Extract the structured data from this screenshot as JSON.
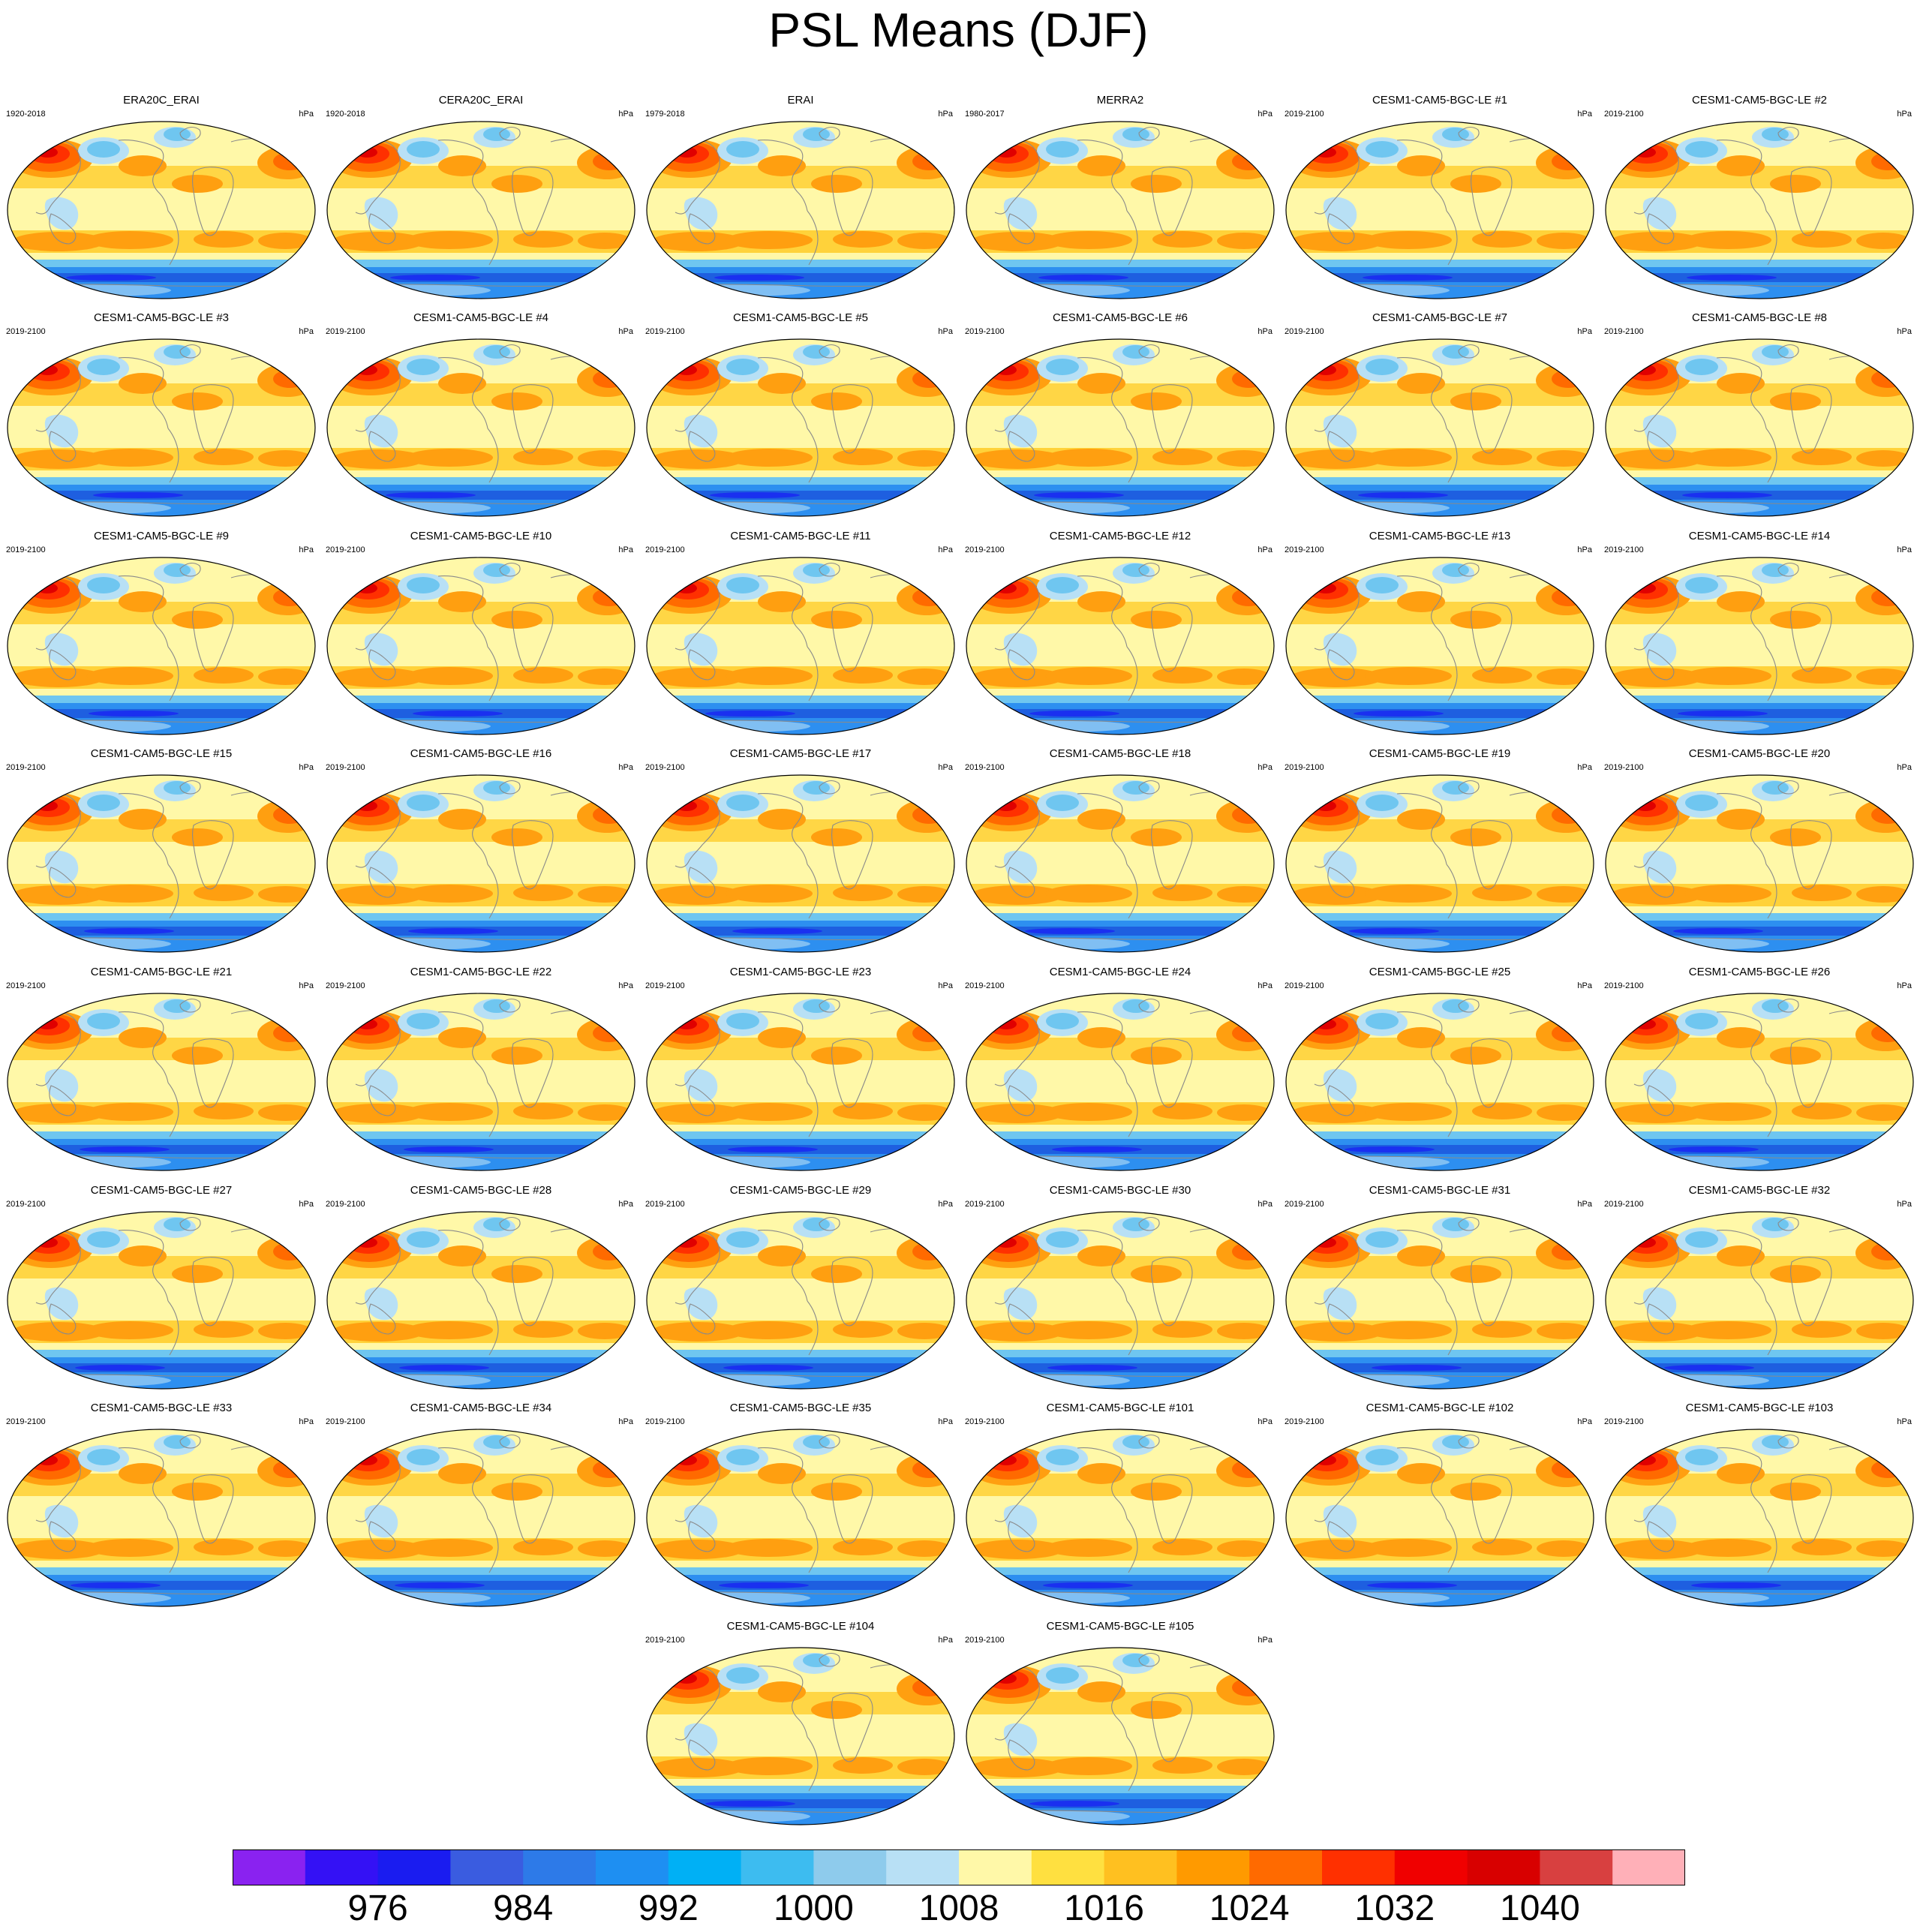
{
  "figure": {
    "title": "PSL Means (DJF)",
    "units": "hPa"
  },
  "panels": [
    {
      "title": "ERA20C_ERAI",
      "years": "1920-2018"
    },
    {
      "title": "CERA20C_ERAI",
      "years": "1920-2018"
    },
    {
      "title": "ERAI",
      "years": "1979-2018"
    },
    {
      "title": "MERRA2",
      "years": "1980-2017"
    },
    {
      "title": "CESM1-CAM5-BGC-LE #1",
      "years": "2019-2100"
    },
    {
      "title": "CESM1-CAM5-BGC-LE #2",
      "years": "2019-2100"
    },
    {
      "title": "CESM1-CAM5-BGC-LE #3",
      "years": "2019-2100"
    },
    {
      "title": "CESM1-CAM5-BGC-LE #4",
      "years": "2019-2100"
    },
    {
      "title": "CESM1-CAM5-BGC-LE #5",
      "years": "2019-2100"
    },
    {
      "title": "CESM1-CAM5-BGC-LE #6",
      "years": "2019-2100"
    },
    {
      "title": "CESM1-CAM5-BGC-LE #7",
      "years": "2019-2100"
    },
    {
      "title": "CESM1-CAM5-BGC-LE #8",
      "years": "2019-2100"
    },
    {
      "title": "CESM1-CAM5-BGC-LE #9",
      "years": "2019-2100"
    },
    {
      "title": "CESM1-CAM5-BGC-LE #10",
      "years": "2019-2100"
    },
    {
      "title": "CESM1-CAM5-BGC-LE #11",
      "years": "2019-2100"
    },
    {
      "title": "CESM1-CAM5-BGC-LE #12",
      "years": "2019-2100"
    },
    {
      "title": "CESM1-CAM5-BGC-LE #13",
      "years": "2019-2100"
    },
    {
      "title": "CESM1-CAM5-BGC-LE #14",
      "years": "2019-2100"
    },
    {
      "title": "CESM1-CAM5-BGC-LE #15",
      "years": "2019-2100"
    },
    {
      "title": "CESM1-CAM5-BGC-LE #16",
      "years": "2019-2100"
    },
    {
      "title": "CESM1-CAM5-BGC-LE #17",
      "years": "2019-2100"
    },
    {
      "title": "CESM1-CAM5-BGC-LE #18",
      "years": "2019-2100"
    },
    {
      "title": "CESM1-CAM5-BGC-LE #19",
      "years": "2019-2100"
    },
    {
      "title": "CESM1-CAM5-BGC-LE #20",
      "years": "2019-2100"
    },
    {
      "title": "CESM1-CAM5-BGC-LE #21",
      "years": "2019-2100"
    },
    {
      "title": "CESM1-CAM5-BGC-LE #22",
      "years": "2019-2100"
    },
    {
      "title": "CESM1-CAM5-BGC-LE #23",
      "years": "2019-2100"
    },
    {
      "title": "CESM1-CAM5-BGC-LE #24",
      "years": "2019-2100"
    },
    {
      "title": "CESM1-CAM5-BGC-LE #25",
      "years": "2019-2100"
    },
    {
      "title": "CESM1-CAM5-BGC-LE #26",
      "years": "2019-2100"
    },
    {
      "title": "CESM1-CAM5-BGC-LE #27",
      "years": "2019-2100"
    },
    {
      "title": "CESM1-CAM5-BGC-LE #28",
      "years": "2019-2100"
    },
    {
      "title": "CESM1-CAM5-BGC-LE #29",
      "years": "2019-2100"
    },
    {
      "title": "CESM1-CAM5-BGC-LE #30",
      "years": "2019-2100"
    },
    {
      "title": "CESM1-CAM5-BGC-LE #31",
      "years": "2019-2100"
    },
    {
      "title": "CESM1-CAM5-BGC-LE #32",
      "years": "2019-2100"
    },
    {
      "title": "CESM1-CAM5-BGC-LE #33",
      "years": "2019-2100"
    },
    {
      "title": "CESM1-CAM5-BGC-LE #34",
      "years": "2019-2100"
    },
    {
      "title": "CESM1-CAM5-BGC-LE #35",
      "years": "2019-2100"
    },
    {
      "title": "CESM1-CAM5-BGC-LE #101",
      "years": "2019-2100"
    },
    {
      "title": "CESM1-CAM5-BGC-LE #102",
      "years": "2019-2100"
    },
    {
      "title": "CESM1-CAM5-BGC-LE #103",
      "years": "2019-2100"
    },
    {
      "title": "CESM1-CAM5-BGC-LE #104",
      "years": "2019-2100"
    },
    {
      "title": "CESM1-CAM5-BGC-LE #105",
      "years": "2019-2100"
    }
  ],
  "colorbar": {
    "labels": [
      "976",
      "984",
      "992",
      "1000",
      "1008",
      "1016",
      "1024",
      "1032",
      "1040"
    ],
    "colors": [
      "#8a22f0",
      "#3411f5",
      "#1a1cf0",
      "#3a5ce0",
      "#2d7ae8",
      "#1e8ff2",
      "#00b0f5",
      "#3dbcf0",
      "#8ecbec",
      "#b8e0f5",
      "#fff8a8",
      "#ffe040",
      "#ffc020",
      "#ff9a00",
      "#ff6a00",
      "#ff3000",
      "#f00000",
      "#d80000",
      "#d84040",
      "#ffb0b8"
    ],
    "palette": {
      "ocean_base": "#fff8a8",
      "mid_band": "#ffd23a",
      "high_band": "#ff9f10",
      "strong_high": "#ff6a00",
      "siberian_high": "#ff3000",
      "siberian_core": "#e00000",
      "low_light": "#b8e0f5",
      "low_mid": "#6fc6f0",
      "low_strong": "#2d8ff0",
      "southern_low": "#1e5fe0",
      "southern_core": "#1a30f0",
      "coastline": "#8a8a8a"
    }
  }
}
